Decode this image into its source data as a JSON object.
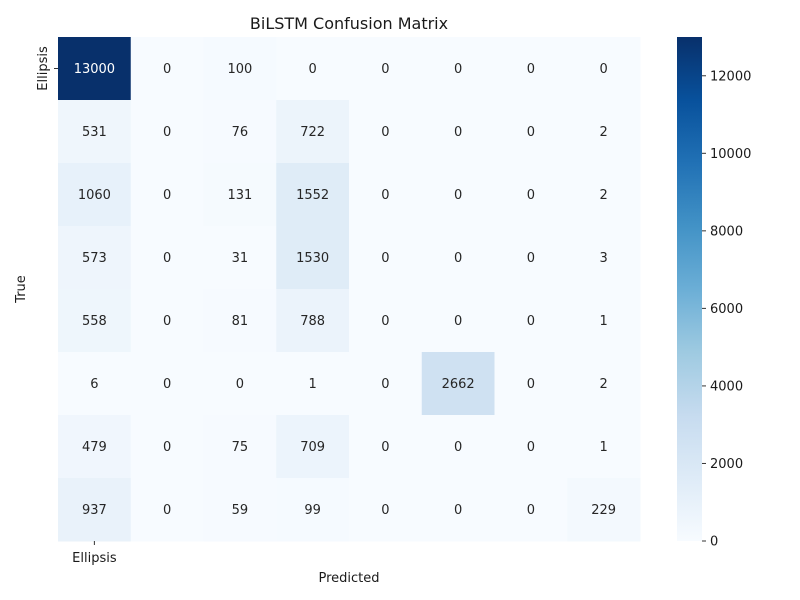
{
  "chart_data": {
    "type": "heatmap",
    "title": "BiLSTM Confusion Matrix",
    "xlabel": "Predicted",
    "ylabel": "True",
    "x_tick_labels": [
      "Ellipsis"
    ],
    "y_tick_labels": [
      "Ellipsis"
    ],
    "matrix": [
      [
        13000,
        0,
        100,
        0,
        0,
        0,
        0,
        0
      ],
      [
        531,
        0,
        76,
        722,
        0,
        0,
        0,
        2
      ],
      [
        1060,
        0,
        131,
        1552,
        0,
        0,
        0,
        2
      ],
      [
        573,
        0,
        31,
        1530,
        0,
        0,
        0,
        3
      ],
      [
        558,
        0,
        81,
        788,
        0,
        0,
        0,
        1
      ],
      [
        6,
        0,
        0,
        1,
        0,
        2662,
        0,
        2
      ],
      [
        479,
        0,
        75,
        709,
        0,
        0,
        0,
        1
      ],
      [
        937,
        0,
        59,
        99,
        0,
        0,
        0,
        229
      ]
    ],
    "colormap": "Blues",
    "vmin": 0,
    "vmax": 13000,
    "colorbar_ticks": [
      0,
      2000,
      4000,
      6000,
      8000,
      10000,
      12000
    ]
  }
}
